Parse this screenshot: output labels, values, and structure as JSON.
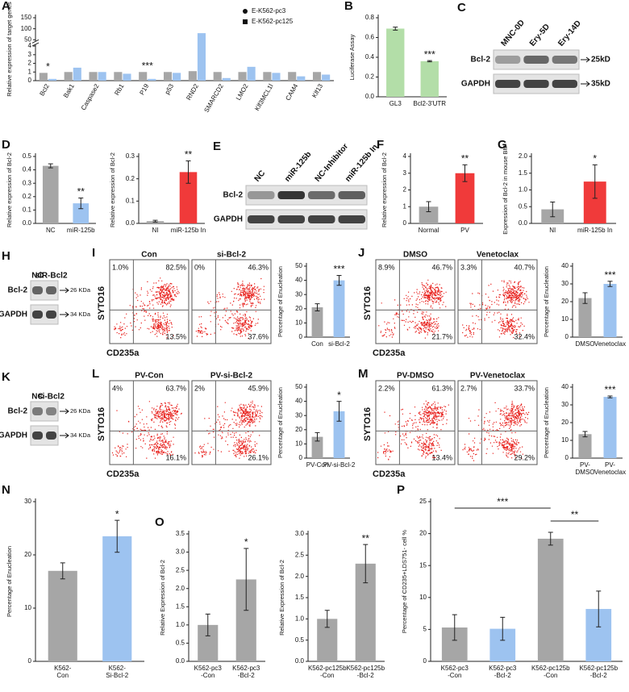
{
  "chart_data": [
    {
      "type": "bar",
      "panel": "A",
      "y_label": "Relative expression of target genes",
      "categories": [
        "Bcl2",
        "Bak1",
        "Caspase2",
        "Rb1",
        "P19",
        "p53",
        "RND2",
        "SMARCD2",
        "LMO2",
        "Klf3MCL1l",
        "CAM4",
        "Klf13"
      ],
      "series": [
        {
          "name": "E-K562-pc3",
          "color": "#a6a6a6",
          "marker": "circle",
          "values": [
            0.9,
            1.0,
            1.0,
            1.0,
            1.0,
            1.0,
            1.1,
            1.0,
            1.0,
            1.0,
            1.0,
            1.0
          ]
        },
        {
          "name": "E-K562-pc125",
          "color": "#9dc3f0",
          "marker": "square",
          "values": [
            0.2,
            1.5,
            1.0,
            0.8,
            0.2,
            0.9,
            80,
            0.3,
            1.6,
            0.9,
            0.5,
            0.7
          ]
        }
      ],
      "ylim": [
        0,
        150
      ],
      "ybreak": [
        4,
        50
      ],
      "yticks": [
        0,
        1,
        2,
        3,
        4,
        50,
        100,
        150
      ],
      "significance": [
        "*",
        null,
        null,
        null,
        "***",
        null,
        null,
        null,
        null,
        null,
        null,
        null
      ],
      "legend": "upper right"
    },
    {
      "type": "bar",
      "panel": "B",
      "y_label": "Luciferase Assay",
      "categories": [
        "GL3",
        "Bcl2-3'UTR"
      ],
      "values": [
        0.69,
        0.36
      ],
      "errors": [
        0.015,
        0.006
      ],
      "color": "#b3dea8",
      "ylim": [
        0,
        0.8
      ],
      "yticks": [
        {
          "value": 0,
          "label": "0.0"
        },
        0.2,
        0.4,
        0.6,
        0.8
      ],
      "significance": [
        null,
        "***"
      ]
    },
    {
      "type": "bar",
      "panel": "D",
      "y_label": "Relative expression of Bcl-2",
      "categories": [
        "NC",
        "miR-125b"
      ],
      "values": [
        0.43,
        0.15
      ],
      "errors": [
        0.015,
        0.04
      ],
      "colors": [
        "#a6a6a6",
        "#9dc3f0"
      ],
      "ylim": [
        0,
        0.5
      ],
      "yticks": [
        {
          "value": 0,
          "label": "0.0"
        },
        0.1,
        0.2,
        0.3,
        0.4,
        0.5
      ],
      "significance": [
        null,
        "**"
      ]
    },
    {
      "type": "bar",
      "y_label": "Relative expression of Bcl-2",
      "categories": [
        "NI",
        "miR-125b In"
      ],
      "values": [
        0.01,
        0.23
      ],
      "errors": [
        0.004,
        0.05
      ],
      "colors": [
        "#a6a6a6",
        "#f03a3a"
      ],
      "ylim": [
        0,
        0.3
      ],
      "yticks": [
        {
          "value": 0,
          "label": "0.0"
        },
        0.1,
        0.2,
        0.3
      ],
      "significance": [
        null,
        "**"
      ]
    },
    {
      "type": "bar",
      "panel": "F",
      "y_label": "Relative expression of Bcl-2",
      "categories": [
        "Normal",
        "PV"
      ],
      "values": [
        1.0,
        3.0
      ],
      "errors": [
        0.3,
        0.5
      ],
      "colors": [
        "#a6a6a6",
        "#f03a3a"
      ],
      "ylim": [
        0,
        4
      ],
      "yticks": [
        0,
        1,
        2,
        3,
        4
      ],
      "significance": [
        null,
        "**"
      ]
    },
    {
      "type": "bar",
      "panel": "G",
      "y_label": "Expression of Bcl-2 in mouse BM",
      "categories": [
        "NI",
        "miR-125b In"
      ],
      "values": [
        0.42,
        1.25
      ],
      "errors": [
        0.22,
        0.5
      ],
      "colors": [
        "#a6a6a6",
        "#f03a3a"
      ],
      "ylim": [
        0,
        2
      ],
      "yticks": [
        {
          "value": 0,
          "label": "0.0"
        },
        0.5,
        {
          "value": 1,
          "label": "1.0"
        },
        1.5,
        {
          "value": 2,
          "label": "2.0"
        }
      ],
      "significance": [
        null,
        "*"
      ]
    },
    {
      "type": "bar",
      "y_label": "Percentage of Enucleation",
      "categories": [
        "Con",
        "si-Bcl-2"
      ],
      "values": [
        21,
        40
      ],
      "errors": [
        2.5,
        3.5
      ],
      "colors": [
        "#a6a6a6",
        "#9dc3f0"
      ],
      "ylim": [
        0,
        50
      ],
      "yticks": [
        0,
        10,
        20,
        30,
        40,
        50
      ],
      "significance": [
        null,
        "***"
      ]
    },
    {
      "type": "bar",
      "y_label": "Percentage of Enucleation",
      "categories": [
        "DMSO",
        "Venetoclax"
      ],
      "values": [
        22,
        30
      ],
      "errors": [
        3,
        1.5
      ],
      "colors": [
        "#a6a6a6",
        "#9dc3f0"
      ],
      "ylim": [
        0,
        40
      ],
      "yticks": [
        0,
        10,
        20,
        30,
        40
      ],
      "significance": [
        null,
        "***"
      ]
    },
    {
      "type": "bar",
      "y_label": "Percentage of Enucleation",
      "categories": [
        "PV-Con",
        "PV-si-Bcl-2"
      ],
      "values": [
        15,
        33
      ],
      "errors": [
        3,
        7
      ],
      "colors": [
        "#a6a6a6",
        "#9dc3f0"
      ],
      "ylim": [
        0,
        50
      ],
      "yticks": [
        0,
        10,
        20,
        30,
        40,
        50
      ],
      "significance": [
        null,
        "*"
      ]
    },
    {
      "type": "bar",
      "y_label": "Percentage of Enucleation",
      "categories": [
        "PV-\nDMSO",
        "PV-\nVenetoclax"
      ],
      "values": [
        13.5,
        34.5
      ],
      "errors": [
        1.5,
        0.5
      ],
      "colors": [
        "#a6a6a6",
        "#9dc3f0"
      ],
      "ylim": [
        0,
        40
      ],
      "yticks": [
        0,
        10,
        20,
        30,
        40
      ],
      "significance": [
        null,
        "***"
      ]
    },
    {
      "type": "bar",
      "panel": "N",
      "y_label": "Percentage of Enucleation",
      "categories": [
        "K562-\nCon",
        "K562-\nSi-Bcl-2"
      ],
      "values": [
        17,
        23.5
      ],
      "errors": [
        1.5,
        3
      ],
      "colors": [
        "#a6a6a6",
        "#9dc3f0"
      ],
      "ylim": [
        0,
        30
      ],
      "yticks": [
        0,
        10,
        20,
        30
      ],
      "significance": [
        null,
        "*"
      ]
    },
    {
      "type": "bar",
      "panel": "O",
      "y_label": "Relative Expression of Bcl-2",
      "categories": [
        "K562-pc3\n-Con",
        "K562-pc3\n-Bcl-2"
      ],
      "values": [
        1.0,
        2.25
      ],
      "errors": [
        0.3,
        0.85
      ],
      "colors": [
        "#a6a6a6",
        "#a6a6a6"
      ],
      "ylim": [
        0,
        3.5
      ],
      "yticks": [
        {
          "value": 0,
          "label": "0.0"
        },
        0.5,
        {
          "value": 1,
          "label": "1.0"
        },
        1.5,
        {
          "value": 2,
          "label": "2.0"
        },
        2.5,
        {
          "value": 3,
          "label": "3.0"
        },
        3.5
      ],
      "significance": [
        null,
        "*"
      ]
    },
    {
      "type": "bar",
      "y_label": "Relative Expression of Bcl-2",
      "categories": [
        "K562-pc125b\n-Con",
        "K562-pc125b\n-Bcl-2"
      ],
      "values": [
        1.0,
        2.3
      ],
      "errors": [
        0.2,
        0.45
      ],
      "colors": [
        "#a6a6a6",
        "#a6a6a6"
      ],
      "ylim": [
        0,
        3.0
      ],
      "yticks": [
        {
          "value": 0,
          "label": "0.0"
        },
        0.5,
        {
          "value": 1,
          "label": "1.0"
        },
        1.5,
        {
          "value": 2,
          "label": "2.0"
        },
        2.5,
        {
          "value": 3,
          "label": "3.0"
        }
      ],
      "significance": [
        null,
        "**"
      ]
    },
    {
      "type": "bar",
      "panel": "P",
      "y_label": "Percentage of  CD235+LDS751- cell %",
      "categories": [
        "K562-pc3\n-Con",
        "K562-pc3\n-Bcl-2",
        "K562-pc125b\n-Con",
        "K562-pc125b\n-Bcl-2"
      ],
      "values": [
        5.3,
        5.1,
        19.2,
        8.2
      ],
      "errors": [
        2,
        1.8,
        1,
        2.8
      ],
      "colors": [
        "#a6a6a6",
        "#9dc3f0",
        "#a6a6a6",
        "#9dc3f0"
      ],
      "ylim": [
        0,
        25
      ],
      "yticks": [
        0,
        5,
        10,
        15,
        20,
        25
      ],
      "comparisons": [
        {
          "between": [
            0,
            2
          ],
          "label": "***"
        },
        {
          "between": [
            2,
            3
          ],
          "label": "**"
        }
      ]
    }
  ],
  "blots": [
    {
      "panel": "C",
      "lanes": [
        "MNC-0D",
        "Ery-5D",
        "Ery-14D"
      ],
      "rows": [
        "Bcl-2",
        "GAPDH"
      ],
      "sizes": [
        "25kD",
        "35kD"
      ]
    },
    {
      "panel": "E",
      "lanes": [
        "NC",
        "miR-125b",
        "NC-Inhibitor",
        "miR-125b In"
      ],
      "rows": [
        "Bcl-2",
        "GAPDH"
      ]
    },
    {
      "panel": "H",
      "lanes": [
        "NC",
        "siR-Bcl2"
      ],
      "rows": [
        "Bcl-2",
        "GAPDH"
      ],
      "sizes": [
        "26 KDa",
        "34 KDa"
      ]
    },
    {
      "panel": "K",
      "lanes": [
        "NC",
        "si-Bcl2"
      ],
      "rows": [
        "Bcl-2",
        "GAPDH"
      ],
      "sizes": [
        "26 KDa",
        "34 KDa"
      ]
    }
  ],
  "flow": [
    {
      "panel": "I",
      "y_label": "SYTO16",
      "x_label": "CD235a",
      "plots": [
        {
          "title": "Con",
          "upper_left": "1.0%",
          "upper_right": "82.5%",
          "lower_right": "13.5%"
        },
        {
          "title": "si-Bcl-2",
          "upper_left": "0%",
          "upper_right": "46.3%",
          "lower_right": "37.6%"
        }
      ]
    },
    {
      "panel": "J",
      "y_label": "SYTO16",
      "x_label": "CD235a",
      "plots": [
        {
          "title": "DMSO",
          "upper_left": "8.9%",
          "upper_right": "46.7%",
          "lower_right": "21.7%"
        },
        {
          "title": "Venetoclax",
          "upper_left": "3.3%",
          "upper_right": "40.7%",
          "lower_right": "32.4%"
        }
      ]
    },
    {
      "panel": "L",
      "y_label": "SYTO16",
      "x_label": "CD235a",
      "plots": [
        {
          "title": "PV-Con",
          "upper_left": "4%",
          "upper_right": "63.7%",
          "lower_right": "16.1%"
        },
        {
          "title": "PV-si-Bcl-2",
          "upper_left": "2%",
          "upper_right": "45.9%",
          "lower_right": "26.1%"
        }
      ]
    },
    {
      "panel": "M",
      "y_label": "SYTO16",
      "x_label": "CD235a",
      "plots": [
        {
          "title": "PV-DMSO",
          "upper_left": "2.2%",
          "upper_right": "61.3%",
          "lower_right": "13.4%"
        },
        {
          "title": "PV-Venetoclax",
          "upper_left": "2.7%",
          "upper_right": "33.7%",
          "lower_right": "29.2%"
        }
      ]
    }
  ]
}
